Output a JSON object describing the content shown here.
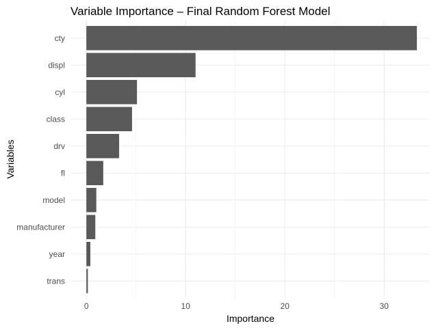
{
  "chart_data": {
    "type": "bar",
    "orientation": "horizontal",
    "title": "Variable Importance – Final Random Forest Model",
    "xlabel": "Importance",
    "ylabel": "Variables",
    "categories": [
      "cty",
      "displ",
      "cyl",
      "class",
      "drv",
      "fl",
      "model",
      "manufacturer",
      "year",
      "trans"
    ],
    "values": [
      33.3,
      11.0,
      5.1,
      4.6,
      3.3,
      1.7,
      1.0,
      0.9,
      0.4,
      0.15
    ],
    "xticks": [
      0,
      10,
      20,
      30
    ],
    "xlim": [
      -1.6,
      34.6
    ],
    "grid": true,
    "bar_color": "#595959",
    "grid_color": "#ebebeb"
  }
}
